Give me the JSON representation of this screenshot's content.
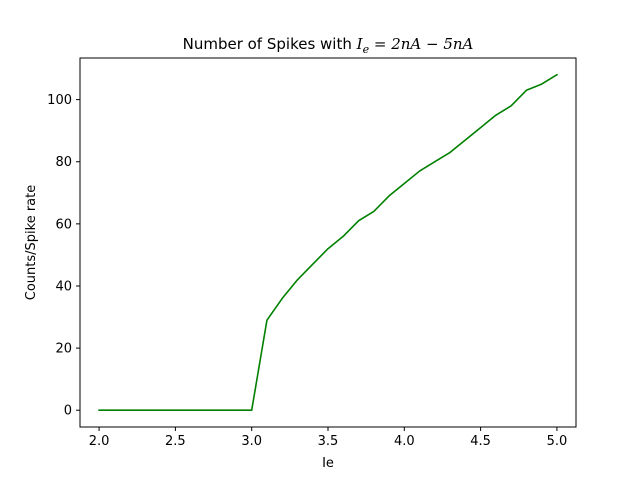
{
  "chart_data": {
    "type": "line",
    "title_prefix": "Number of Spikes with ",
    "title_math": {
      "var": "I",
      "sub": "e",
      "rest": " = 2nA − 5nA"
    },
    "xlabel": "Ie",
    "ylabel": "Counts/Spike rate",
    "xlim": [
      1.875,
      5.125
    ],
    "ylim": [
      -5.4,
      113.4
    ],
    "xticks": [
      2.0,
      2.5,
      3.0,
      3.5,
      4.0,
      4.5,
      5.0
    ],
    "xtick_labels": [
      "2.0",
      "2.5",
      "3.0",
      "3.5",
      "4.0",
      "4.5",
      "5.0"
    ],
    "yticks": [
      0,
      20,
      40,
      60,
      80,
      100
    ],
    "ytick_labels": [
      "0",
      "20",
      "40",
      "60",
      "80",
      "100"
    ],
    "grid": false,
    "series": [
      {
        "color": "#008000",
        "x": [
          2.0,
          2.1,
          2.2,
          2.3,
          2.4,
          2.5,
          2.6,
          2.7,
          2.8,
          2.9,
          3.0,
          3.1,
          3.2,
          3.3,
          3.4,
          3.5,
          3.6,
          3.7,
          3.8,
          3.9,
          4.0,
          4.1,
          4.2,
          4.3,
          4.4,
          4.5,
          4.6,
          4.7,
          4.8,
          4.9,
          5.0
        ],
        "y": [
          0,
          0,
          0,
          0,
          0,
          0,
          0,
          0,
          0,
          0,
          0,
          29,
          36,
          42,
          47,
          52,
          56,
          61,
          64,
          69,
          73,
          77,
          80,
          83,
          87,
          91,
          95,
          98,
          103,
          105,
          108
        ]
      }
    ]
  }
}
